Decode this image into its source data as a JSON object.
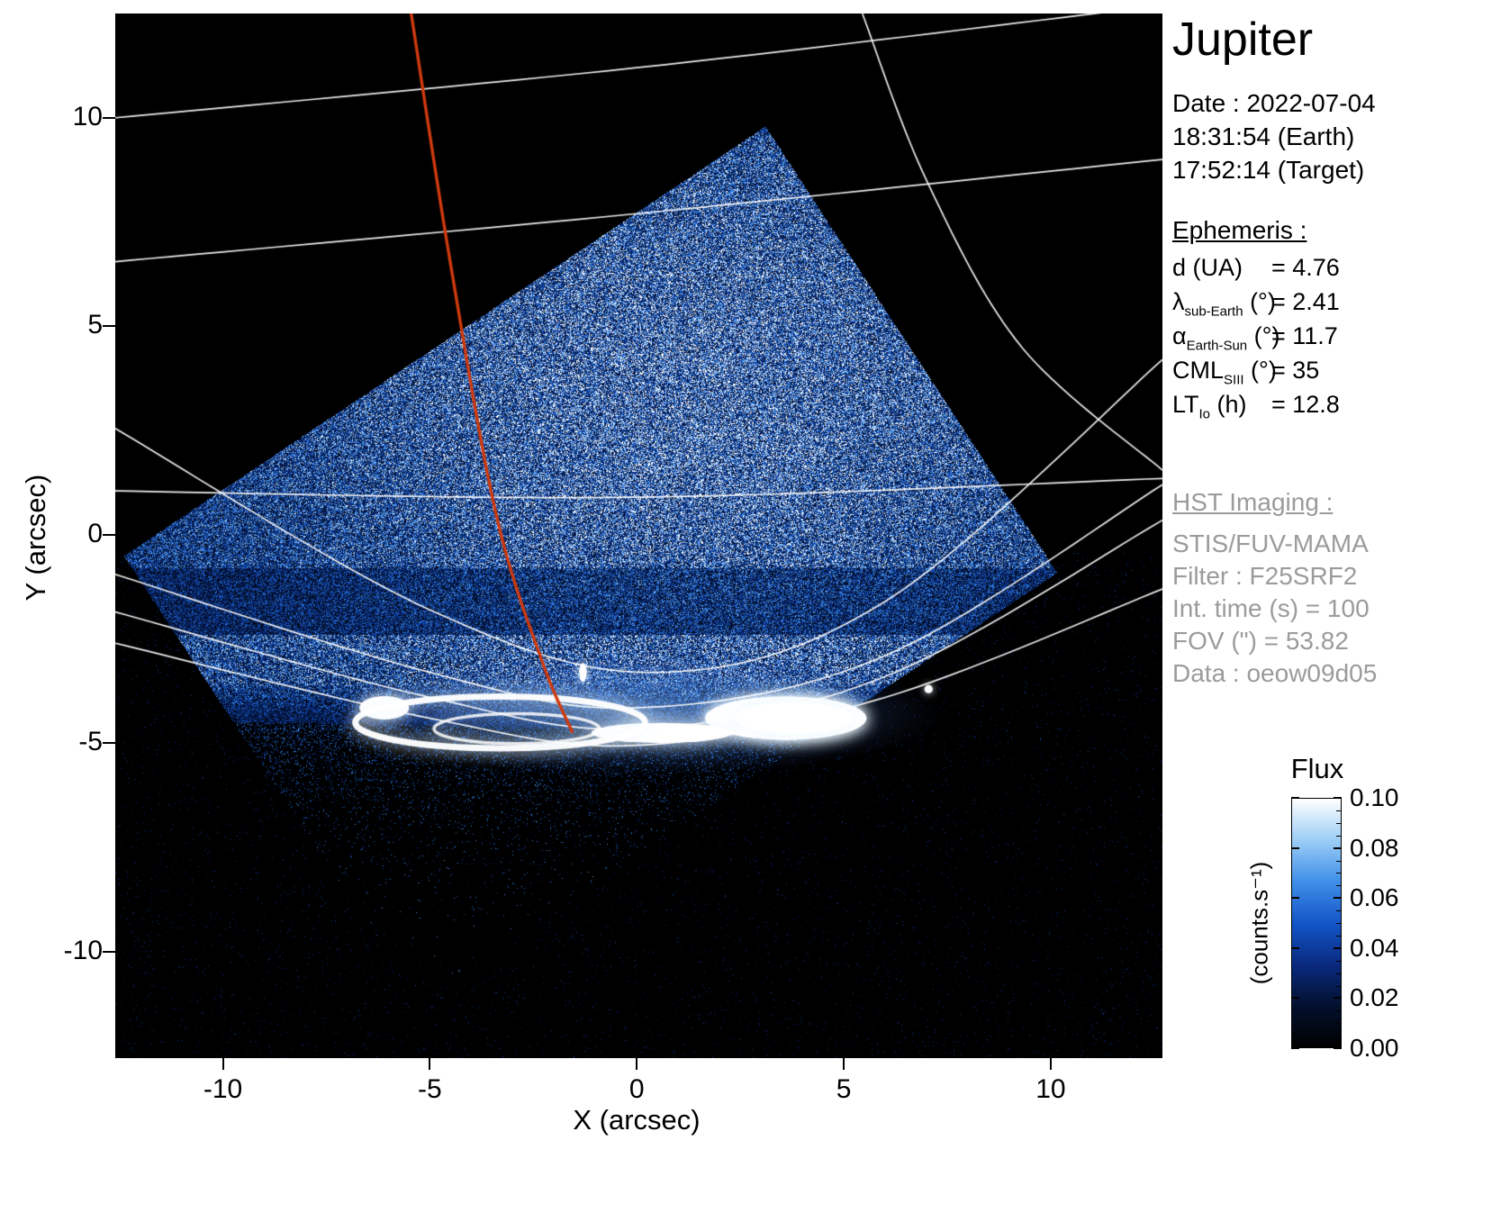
{
  "title": "Jupiter",
  "info_panel": {
    "date_line": "Date : 2022-07-04",
    "time_earth": "18:31:54 (Earth)",
    "time_target": "17:52:14 (Target)",
    "ephemeris": {
      "heading": "Ephemeris :",
      "rows": [
        {
          "sym": "d",
          "sub": "",
          "unit": "(UA)",
          "value": "= 4.76"
        },
        {
          "sym": "λ",
          "sub": "sub-Earth",
          "unit": "(°)",
          "value": "= 2.41"
        },
        {
          "sym": "α",
          "sub": "Earth-Sun",
          "unit": "(°)",
          "value": "= 11.7"
        },
        {
          "sym": "CML",
          "sub": "SIII",
          "unit": "(°)",
          "value": "= 35"
        },
        {
          "sym": "LT",
          "sub": "Io",
          "unit": "(h)",
          "value": "= 12.8"
        }
      ]
    },
    "hst": {
      "heading": "HST Imaging :",
      "lines": [
        "STIS/FUV-MAMA",
        "Filter : F25SRF2",
        "Int. time (s) = 100",
        "FOV (\") = 53.82",
        "Data : oeow09d05"
      ]
    }
  },
  "chart_data": {
    "type": "heatmap",
    "title": "Jupiter — HST/STIS far-UV image of the auroral region",
    "description": "Rotated square STIS/FUV-MAMA detector field of view filled with blue photon noise on black sky; saturated white auroral oval near y = -4.5 arcsec; white planetary graticule arcs; orange-red magnetic footprint track descending from the top.",
    "xlabel": "X (arcsec)",
    "ylabel": "Y (arcsec)",
    "xlim": [
      -12.6,
      12.7
    ],
    "ylim": [
      -12.55,
      12.5
    ],
    "x_ticks": [
      "-10",
      "-5",
      "0",
      "5",
      "10"
    ],
    "x_tick_vals": [
      -10,
      -5,
      0,
      5,
      10
    ],
    "y_ticks": [
      "10",
      "5",
      "0",
      "-5",
      "-10"
    ],
    "y_tick_vals": [
      10,
      5,
      0,
      -5,
      -10
    ],
    "grid": false,
    "colorbar": {
      "title": "Flux",
      "unit": "(counts.s⁻¹)",
      "tick_labels": [
        "0.10",
        "0.08",
        "0.06",
        "0.04",
        "0.02",
        "0.00"
      ],
      "tick_vals": [
        0.1,
        0.08,
        0.06,
        0.04,
        0.02,
        0.0
      ],
      "range": [
        0.0,
        0.1
      ],
      "stops": [
        "#000000",
        "#03102e",
        "#0a2a80",
        "#1356c8",
        "#3f8fe8",
        "#9ccdf6",
        "#ffffff"
      ]
    },
    "detector_fov_vertices": [
      [
        3.1,
        9.8
      ],
      [
        10.15,
        -0.9
      ],
      [
        -5.3,
        -11.2
      ],
      [
        -12.4,
        -0.5
      ]
    ],
    "aurora": {
      "glow": {
        "cx": 0.2,
        "cy": -4.3,
        "rx": 7.2,
        "ry": 1.5
      },
      "main_ring": {
        "cx": -3.3,
        "cy": -4.5,
        "rx": 3.5,
        "ry": 0.62
      },
      "inner_ring": {
        "cx": -2.9,
        "cy": -4.65,
        "rx": 2.0,
        "ry": 0.36
      },
      "bridge": {
        "cx": 0.6,
        "cy": -4.75,
        "rx": 1.7,
        "ry": 0.24
      },
      "main_blob": {
        "cx": 3.6,
        "cy": -4.4,
        "rx": 1.95,
        "ry": 0.52
      },
      "blob_core": {
        "cx": 3.8,
        "cy": -4.4,
        "rx": 1.45,
        "ry": 0.38
      },
      "left_cap": {
        "cx": -6.1,
        "cy": -4.15,
        "rx": 0.6,
        "ry": 0.28
      },
      "spot": {
        "cx": 7.05,
        "cy": -3.7,
        "r": 0.1
      },
      "dash": {
        "cx": -1.3,
        "cy": -3.3,
        "rx": 0.09,
        "ry": 0.23
      }
    },
    "graticule": [
      [
        [
          -12.6,
          10.0
        ],
        [
          0,
          11.2
        ],
        [
          11.5,
          12.55
        ]
      ],
      [
        [
          -12.6,
          6.55
        ],
        [
          0,
          7.7
        ],
        [
          12.7,
          9.0
        ]
      ],
      [
        [
          -12.6,
          1.05
        ],
        [
          0,
          0.9
        ],
        [
          12.7,
          1.35
        ]
      ],
      [
        [
          -12.6,
          2.55
        ],
        [
          -5,
          -1.8
        ],
        [
          0.5,
          -3.3
        ],
        [
          6,
          -1.6
        ],
        [
          12.7,
          4.2
        ]
      ],
      [
        [
          -12.6,
          -0.95
        ],
        [
          -5,
          -3.3
        ],
        [
          0,
          -4.15
        ],
        [
          6,
          -2.9
        ],
        [
          12.7,
          1.2
        ]
      ],
      [
        [
          -12.6,
          -1.85
        ],
        [
          -5,
          -3.9
        ],
        [
          0,
          -4.65
        ],
        [
          6,
          -3.4
        ],
        [
          12.7,
          0.35
        ]
      ],
      [
        [
          -12.6,
          -2.6
        ],
        [
          -5,
          -4.4
        ],
        [
          0,
          -5.05
        ],
        [
          6,
          -3.9
        ],
        [
          12.7,
          -1.3
        ]
      ],
      [
        [
          5.45,
          12.5
        ],
        [
          7.0,
          8.5
        ],
        [
          9.3,
          4.5
        ],
        [
          12.7,
          1.55
        ]
      ]
    ],
    "track": {
      "color": "#cf3a0e",
      "points": [
        [
          -5.45,
          12.5
        ],
        [
          -4.5,
          6.5
        ],
        [
          -3.4,
          0.5
        ],
        [
          -2.3,
          -3.0
        ],
        [
          -1.55,
          -4.75
        ]
      ]
    }
  }
}
